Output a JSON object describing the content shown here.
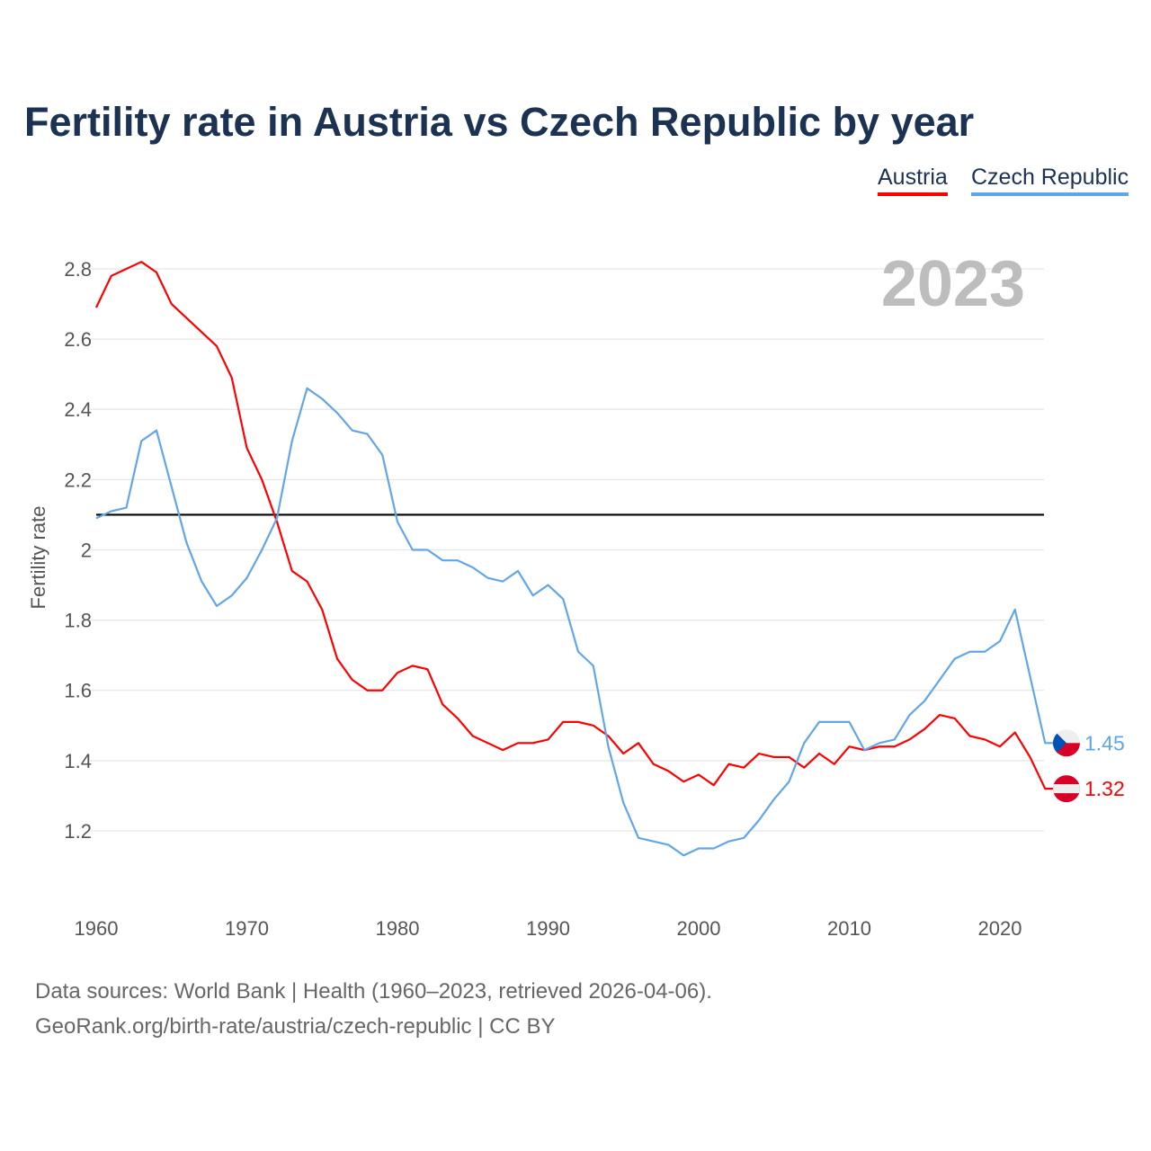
{
  "title": "Fertility rate in Austria vs Czech Republic by year",
  "footer": {
    "line1": "Data sources: World Bank | Health (1960–2023, retrieved 2026-04-06).",
    "line2": "GeoRank.org/birth-rate/austria/czech-republic | CC BY"
  },
  "chart_data": {
    "type": "line",
    "title": "Fertility rate in Austria vs Czech Republic by year",
    "xlabel": "",
    "ylabel": "Fertility rate",
    "year_label": "2023",
    "xlim": [
      1960,
      2023
    ],
    "ylim": [
      1.0,
      2.85
    ],
    "xticks": [
      "1960",
      "1970",
      "1980",
      "1990",
      "2000",
      "2010",
      "2020"
    ],
    "yticks": [
      "1.2",
      "1.4",
      "1.6",
      "1.8",
      "2",
      "2.2",
      "2.4",
      "2.6",
      "2.8"
    ],
    "grid": true,
    "legend_position": "top-right",
    "reference_line": {
      "value": 2.1,
      "color": "#000000"
    },
    "x": [
      1960,
      1961,
      1962,
      1963,
      1964,
      1965,
      1966,
      1967,
      1968,
      1969,
      1970,
      1971,
      1972,
      1973,
      1974,
      1975,
      1976,
      1977,
      1978,
      1979,
      1980,
      1981,
      1982,
      1983,
      1984,
      1985,
      1986,
      1987,
      1988,
      1989,
      1990,
      1991,
      1992,
      1993,
      1994,
      1995,
      1996,
      1997,
      1998,
      1999,
      2000,
      2001,
      2002,
      2003,
      2004,
      2005,
      2006,
      2007,
      2008,
      2009,
      2010,
      2011,
      2012,
      2013,
      2014,
      2015,
      2016,
      2017,
      2018,
      2019,
      2020,
      2021,
      2022,
      2023
    ],
    "series": [
      {
        "name": "Austria",
        "color": "#ff0000",
        "end_label": "1.32",
        "values": [
          2.69,
          2.78,
          2.8,
          2.82,
          2.79,
          2.7,
          2.66,
          2.62,
          2.58,
          2.49,
          2.29,
          2.2,
          2.08,
          1.94,
          1.91,
          1.83,
          1.69,
          1.63,
          1.6,
          1.6,
          1.65,
          1.67,
          1.66,
          1.56,
          1.52,
          1.47,
          1.45,
          1.43,
          1.45,
          1.45,
          1.46,
          1.51,
          1.51,
          1.5,
          1.47,
          1.42,
          1.45,
          1.39,
          1.37,
          1.34,
          1.36,
          1.33,
          1.39,
          1.38,
          1.42,
          1.41,
          1.41,
          1.38,
          1.42,
          1.39,
          1.44,
          1.43,
          1.44,
          1.44,
          1.46,
          1.49,
          1.53,
          1.52,
          1.47,
          1.46,
          1.44,
          1.48,
          1.41,
          1.32
        ]
      },
      {
        "name": "Czech Republic",
        "color": "#62a6ea",
        "end_label": "1.45",
        "values": [
          2.09,
          2.11,
          2.12,
          2.31,
          2.34,
          2.18,
          2.02,
          1.91,
          1.84,
          1.87,
          1.92,
          2.0,
          2.09,
          2.31,
          2.46,
          2.43,
          2.39,
          2.34,
          2.33,
          2.27,
          2.08,
          2.0,
          2.0,
          1.97,
          1.97,
          1.95,
          1.92,
          1.91,
          1.94,
          1.87,
          1.9,
          1.86,
          1.71,
          1.67,
          1.44,
          1.28,
          1.18,
          1.17,
          1.16,
          1.13,
          1.15,
          1.15,
          1.17,
          1.18,
          1.23,
          1.29,
          1.34,
          1.45,
          1.51,
          1.51,
          1.51,
          1.43,
          1.45,
          1.46,
          1.53,
          1.57,
          1.63,
          1.69,
          1.71,
          1.71,
          1.74,
          1.83,
          1.64,
          1.45
        ]
      }
    ]
  }
}
